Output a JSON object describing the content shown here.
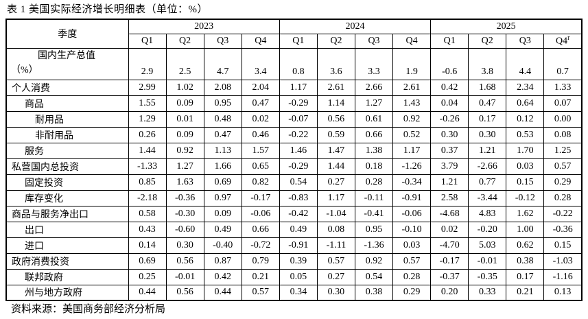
{
  "title": "表 1 美国实际经济增长明细表（单位：%）",
  "source": "资料来源：美国商务部经济分析局",
  "table": {
    "corner_label": "季度",
    "years": [
      "2023",
      "2024",
      "2025"
    ],
    "quarters": [
      "Q1",
      "Q2",
      "Q3",
      "Q4",
      "Q1",
      "Q2",
      "Q3",
      "Q4",
      "Q1",
      "Q2",
      "Q3",
      "Q4"
    ],
    "last_quarter_superscript": "r",
    "gdp_row": {
      "label_line1": "国内生产总值",
      "label_line2": "（%）",
      "values": [
        "2.9",
        "2.5",
        "4.7",
        "3.4",
        "0.8",
        "3.6",
        "3.3",
        "1.9",
        "-0.6",
        "3.8",
        "4.4",
        "0.7"
      ]
    },
    "rows": [
      {
        "label": "个人消费",
        "indent": 0,
        "values": [
          "2.99",
          "1.02",
          "2.08",
          "2.04",
          "1.17",
          "2.61",
          "2.66",
          "2.61",
          "0.42",
          "1.68",
          "2.34",
          "1.33"
        ]
      },
      {
        "label": "商品",
        "indent": 1,
        "values": [
          "1.55",
          "0.09",
          "0.95",
          "0.47",
          "-0.29",
          "1.14",
          "1.27",
          "1.43",
          "0.04",
          "0.47",
          "0.64",
          "0.07"
        ]
      },
      {
        "label": "耐用品",
        "indent": 2,
        "values": [
          "1.29",
          "0.01",
          "0.48",
          "0.02",
          "-0.07",
          "0.56",
          "0.61",
          "0.92",
          "-0.26",
          "0.17",
          "0.12",
          "0.00"
        ]
      },
      {
        "label": "非耐用品",
        "indent": 2,
        "values": [
          "0.26",
          "0.09",
          "0.47",
          "0.46",
          "-0.22",
          "0.59",
          "0.66",
          "0.52",
          "0.30",
          "0.30",
          "0.53",
          "0.08"
        ]
      },
      {
        "label": "服务",
        "indent": 1,
        "values": [
          "1.44",
          "0.92",
          "1.13",
          "1.57",
          "1.46",
          "1.47",
          "1.38",
          "1.17",
          "0.37",
          "1.21",
          "1.70",
          "1.25"
        ]
      },
      {
        "label": "私营国内总投资",
        "indent": 0,
        "values": [
          "-1.33",
          "1.27",
          "1.66",
          "0.65",
          "-0.29",
          "1.44",
          "0.18",
          "-1.26",
          "3.79",
          "-2.66",
          "0.03",
          "0.57"
        ]
      },
      {
        "label": "固定投资",
        "indent": 1,
        "values": [
          "0.85",
          "1.63",
          "0.69",
          "0.82",
          "0.54",
          "0.27",
          "0.28",
          "-0.34",
          "1.21",
          "0.77",
          "0.15",
          "0.29"
        ]
      },
      {
        "label": "库存变化",
        "indent": 1,
        "values": [
          "-2.18",
          "-0.36",
          "0.97",
          "-0.17",
          "-0.83",
          "1.17",
          "-0.11",
          "-0.91",
          "2.58",
          "-3.44",
          "-0.12",
          "0.28"
        ]
      },
      {
        "label": "商品与服务净出口",
        "indent": 0,
        "values": [
          "0.58",
          "-0.30",
          "0.09",
          "-0.06",
          "-0.42",
          "-1.04",
          "-0.41",
          "-0.06",
          "-4.68",
          "4.83",
          "1.62",
          "-0.22"
        ]
      },
      {
        "label": "出口",
        "indent": 1,
        "values": [
          "0.43",
          "-0.60",
          "0.49",
          "0.66",
          "0.49",
          "0.08",
          "0.95",
          "-0.10",
          "0.02",
          "-0.20",
          "1.00",
          "-0.36"
        ]
      },
      {
        "label": "进口",
        "indent": 1,
        "values": [
          "0.14",
          "0.30",
          "-0.40",
          "-0.72",
          "-0.91",
          "-1.11",
          "-1.36",
          "0.03",
          "-4.70",
          "5.03",
          "0.62",
          "0.15"
        ]
      },
      {
        "label": "政府消费投资",
        "indent": 0,
        "values": [
          "0.69",
          "0.56",
          "0.87",
          "0.79",
          "0.39",
          "0.57",
          "0.92",
          "0.57",
          "-0.17",
          "-0.01",
          "0.38",
          "-1.03"
        ]
      },
      {
        "label": "联邦政府",
        "indent": 1,
        "values": [
          "0.25",
          "-0.01",
          "0.42",
          "0.21",
          "0.05",
          "0.27",
          "0.54",
          "0.28",
          "-0.37",
          "-0.35",
          "0.17",
          "-1.16"
        ]
      },
      {
        "label": "州与地方政府",
        "indent": 1,
        "values": [
          "0.44",
          "0.56",
          "0.44",
          "0.57",
          "0.34",
          "0.30",
          "0.38",
          "0.29",
          "0.20",
          "0.33",
          "0.21",
          "0.13"
        ]
      }
    ]
  }
}
